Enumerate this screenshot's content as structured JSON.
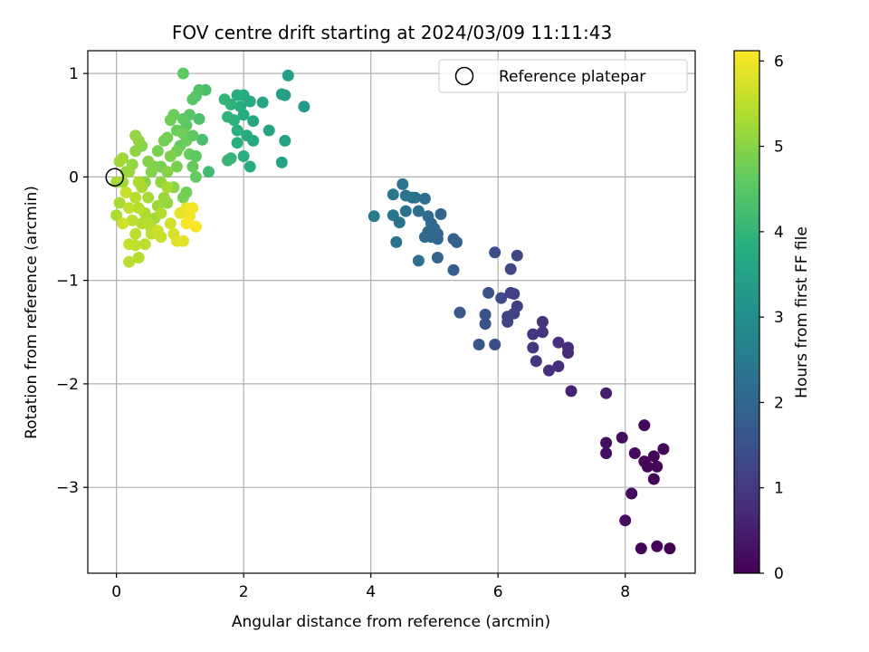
{
  "chart_data": {
    "type": "scatter",
    "title": "FOV centre drift starting at 2024/03/09 11:11:43",
    "xlabel": "Angular distance from reference (arcmin)",
    "ylabel": "Rotation from reference (arcmin)",
    "xlim": [
      -0.45,
      9.1
    ],
    "ylim": [
      -3.83,
      1.22
    ],
    "xticks": [
      0,
      2,
      4,
      6,
      8
    ],
    "yticks": [
      1,
      0,
      -1,
      -2,
      -3
    ],
    "xtick_labels": [
      "0",
      "2",
      "4",
      "6",
      "8"
    ],
    "ytick_labels": [
      "1",
      "0",
      "−1",
      "−2",
      "−3"
    ],
    "grid": true,
    "legend": {
      "placement": "top-right",
      "entries": [
        "Reference platepar"
      ]
    },
    "reference_point": {
      "x": 0,
      "y": 0,
      "label": "Reference platepar"
    },
    "colorbar": {
      "label": "Hours from first FF file",
      "range": [
        0,
        6.12
      ],
      "ticks": [
        0,
        1,
        2,
        3,
        4,
        5,
        6
      ],
      "tick_labels": [
        "0",
        "1",
        "2",
        "3",
        "4",
        "5",
        "6"
      ],
      "colormap": "viridis"
    },
    "series": [
      {
        "points": [
          [
            8.3,
            -2.4,
            0.1
          ],
          [
            8.6,
            -2.63,
            0.12
          ],
          [
            8.45,
            -2.7,
            0.08
          ],
          [
            8.3,
            -2.75,
            0.1
          ],
          [
            8.5,
            -2.8,
            0.1
          ],
          [
            8.35,
            -2.8,
            0.1
          ],
          [
            8.15,
            -2.67,
            0.15
          ],
          [
            8.45,
            -2.92,
            0.1
          ],
          [
            7.95,
            -2.52,
            0.2
          ],
          [
            7.7,
            -2.57,
            0.25
          ],
          [
            7.7,
            -2.67,
            0.25
          ],
          [
            8.1,
            -3.06,
            0.15
          ],
          [
            8.0,
            -3.32,
            0.2
          ],
          [
            8.25,
            -3.59,
            0.05
          ],
          [
            8.5,
            -3.57,
            0.05
          ],
          [
            8.7,
            -3.59,
            0.02
          ],
          [
            7.7,
            -2.09,
            0.5
          ],
          [
            7.15,
            -2.07,
            0.6
          ],
          [
            7.1,
            -1.65,
            0.75
          ],
          [
            7.1,
            -1.7,
            0.75
          ],
          [
            6.95,
            -1.6,
            0.8
          ],
          [
            6.95,
            -1.83,
            0.8
          ],
          [
            6.8,
            -1.87,
            0.85
          ],
          [
            6.7,
            -1.4,
            0.9
          ],
          [
            6.7,
            -1.5,
            0.9
          ],
          [
            6.55,
            -1.52,
            0.95
          ],
          [
            6.55,
            -1.65,
            0.95
          ],
          [
            6.6,
            -1.78,
            0.95
          ],
          [
            6.3,
            -1.25,
            1.15
          ],
          [
            6.25,
            -1.13,
            1.2
          ],
          [
            6.2,
            -1.12,
            1.2
          ],
          [
            6.25,
            -1.32,
            1.2
          ],
          [
            6.15,
            -1.4,
            1.25
          ],
          [
            6.15,
            -1.35,
            1.25
          ],
          [
            6.2,
            -0.89,
            1.3
          ],
          [
            6.3,
            -0.76,
            1.3
          ],
          [
            6.05,
            -1.17,
            1.4
          ],
          [
            5.95,
            -0.73,
            1.45
          ],
          [
            5.85,
            -1.12,
            1.5
          ],
          [
            5.8,
            -1.33,
            1.5
          ],
          [
            5.8,
            -1.42,
            1.5
          ],
          [
            5.95,
            -1.62,
            1.45
          ],
          [
            5.7,
            -1.62,
            1.55
          ],
          [
            5.4,
            -1.31,
            1.7
          ],
          [
            5.35,
            -0.63,
            1.9
          ],
          [
            5.3,
            -0.6,
            1.9
          ],
          [
            5.3,
            -0.9,
            1.85
          ],
          [
            5.05,
            -0.78,
            1.95
          ],
          [
            5.1,
            -0.36,
            2.0
          ],
          [
            5.05,
            -0.55,
            2.0
          ],
          [
            5.05,
            -0.6,
            2.0
          ],
          [
            5.0,
            -0.5,
            2.05
          ],
          [
            4.95,
            -0.45,
            2.05
          ],
          [
            4.95,
            -0.58,
            2.05
          ],
          [
            4.9,
            -0.53,
            2.1
          ],
          [
            4.85,
            -0.58,
            2.1
          ],
          [
            4.9,
            -0.38,
            2.1
          ],
          [
            4.85,
            -0.21,
            2.2
          ],
          [
            4.7,
            -0.2,
            2.3
          ],
          [
            4.65,
            -0.2,
            2.3
          ],
          [
            4.55,
            -0.18,
            2.35
          ],
          [
            4.5,
            -0.07,
            2.4
          ],
          [
            4.55,
            -0.33,
            2.3
          ],
          [
            4.75,
            -0.33,
            2.25
          ],
          [
            4.35,
            -0.17,
            2.45
          ],
          [
            4.35,
            -0.37,
            2.4
          ],
          [
            4.45,
            -0.44,
            2.35
          ],
          [
            4.4,
            -0.63,
            2.3
          ],
          [
            4.75,
            -0.81,
            2.2
          ],
          [
            4.05,
            -0.38,
            2.5
          ],
          [
            2.95,
            0.68,
            3.3
          ],
          [
            2.7,
            0.98,
            3.4
          ],
          [
            2.6,
            0.8,
            3.45
          ],
          [
            2.65,
            0.79,
            3.45
          ],
          [
            2.6,
            0.14,
            3.5
          ],
          [
            2.65,
            0.35,
            3.5
          ],
          [
            2.4,
            0.45,
            3.55
          ],
          [
            2.3,
            0.72,
            3.6
          ],
          [
            2.15,
            0.54,
            3.65
          ],
          [
            2.05,
            0.4,
            3.7
          ],
          [
            2.15,
            0.35,
            3.7
          ],
          [
            2.1,
            0.1,
            3.75
          ],
          [
            2.1,
            0.73,
            3.7
          ],
          [
            2.0,
            0.79,
            3.75
          ],
          [
            1.9,
            0.79,
            3.8
          ],
          [
            1.95,
            0.68,
            3.8
          ],
          [
            2.0,
            0.6,
            3.8
          ],
          [
            1.9,
            0.45,
            3.85
          ],
          [
            1.9,
            0.33,
            3.85
          ],
          [
            2.0,
            0.2,
            3.85
          ],
          [
            1.85,
            0.55,
            3.9
          ],
          [
            1.8,
            0.7,
            3.95
          ],
          [
            1.75,
            0.58,
            3.95
          ],
          [
            1.8,
            0.18,
            4.0
          ],
          [
            1.7,
            0.75,
            4.0
          ],
          [
            1.75,
            0.16,
            4.05
          ],
          [
            1.45,
            0.05,
            4.2
          ],
          [
            1.4,
            0.84,
            4.3
          ],
          [
            1.35,
            0.36,
            4.3
          ],
          [
            1.3,
            0.56,
            4.35
          ],
          [
            1.3,
            0.84,
            4.4
          ],
          [
            1.25,
            0.78,
            4.45
          ],
          [
            1.2,
            0.75,
            4.5
          ],
          [
            1.15,
            0.6,
            4.5
          ],
          [
            1.1,
            0.5,
            4.55
          ],
          [
            1.05,
            1.0,
            4.6
          ],
          [
            1.05,
            0.56,
            4.6
          ],
          [
            1.0,
            0.3,
            4.65
          ],
          [
            0.95,
            0.45,
            4.7
          ],
          [
            0.9,
            0.6,
            4.7
          ],
          [
            0.85,
            0.55,
            4.75
          ],
          [
            0.8,
            0.38,
            4.8
          ],
          [
            0.75,
            0.35,
            4.8
          ],
          [
            0.7,
            0.1,
            4.85
          ],
          [
            0.65,
            0.25,
            4.85
          ],
          [
            0.6,
            0.1,
            4.9
          ],
          [
            0.55,
            0.05,
            4.95
          ],
          [
            0.5,
            0.15,
            4.95
          ],
          [
            0.45,
            -0.05,
            5.0
          ],
          [
            0.4,
            0.3,
            5.0
          ],
          [
            0.35,
            0.35,
            5.05
          ],
          [
            0.3,
            0.25,
            5.05
          ],
          [
            0.3,
            0.4,
            5.1
          ],
          [
            0.25,
            0.12,
            5.1
          ],
          [
            0.2,
            0.05,
            5.15
          ],
          [
            0.15,
            0.05,
            5.2
          ],
          [
            0.1,
            0.18,
            5.2
          ],
          [
            0.1,
            -0.05,
            5.25
          ],
          [
            0.05,
            0.15,
            5.25
          ],
          [
            0.05,
            -0.25,
            5.3
          ],
          [
            0.0,
            -0.05,
            5.3
          ],
          [
            0.0,
            -0.37,
            5.35
          ],
          [
            1.2,
            0.1,
            4.65
          ],
          [
            1.15,
            0.22,
            4.7
          ],
          [
            1.1,
            0.35,
            4.7
          ],
          [
            1.05,
            0.42,
            4.75
          ],
          [
            0.95,
            0.25,
            4.8
          ],
          [
            0.95,
            0.1,
            4.85
          ],
          [
            0.85,
            0.2,
            4.9
          ],
          [
            0.8,
            0.05,
            4.95
          ],
          [
            1.2,
            0.4,
            4.6
          ],
          [
            1.25,
            0.2,
            4.6
          ],
          [
            1.25,
            0.0,
            4.65
          ],
          [
            1.1,
            -0.15,
            4.8
          ],
          [
            1.05,
            -0.2,
            4.85
          ],
          [
            0.9,
            -0.1,
            5.0
          ],
          [
            0.8,
            -0.25,
            5.1
          ],
          [
            0.75,
            -0.2,
            5.15
          ],
          [
            0.7,
            -0.05,
            5.1
          ],
          [
            0.65,
            -0.28,
            5.2
          ],
          [
            0.6,
            -0.4,
            5.25
          ],
          [
            0.55,
            -0.5,
            5.3
          ],
          [
            0.5,
            -0.2,
            5.3
          ],
          [
            0.45,
            -0.35,
            5.35
          ],
          [
            0.4,
            -0.45,
            5.4
          ],
          [
            0.35,
            -0.3,
            5.45
          ],
          [
            0.3,
            -0.2,
            5.45
          ],
          [
            0.3,
            -0.55,
            5.5
          ],
          [
            0.25,
            -0.42,
            5.5
          ],
          [
            0.2,
            -0.3,
            5.55
          ],
          [
            0.2,
            -0.65,
            5.6
          ],
          [
            0.15,
            -0.15,
            5.6
          ],
          [
            0.1,
            -0.45,
            5.65
          ],
          [
            0.2,
            -0.82,
            5.5
          ],
          [
            0.35,
            -0.78,
            5.45
          ],
          [
            0.45,
            -0.65,
            5.5
          ],
          [
            0.55,
            -0.55,
            5.55
          ],
          [
            0.7,
            -0.58,
            5.6
          ],
          [
            0.85,
            -0.45,
            5.7
          ],
          [
            0.9,
            -0.55,
            5.75
          ],
          [
            0.95,
            -0.62,
            5.8
          ],
          [
            1.05,
            -0.62,
            5.85
          ],
          [
            1.0,
            -0.35,
            5.9
          ],
          [
            1.1,
            -0.3,
            5.95
          ],
          [
            1.15,
            -0.38,
            6.0
          ],
          [
            1.2,
            -0.3,
            6.05
          ],
          [
            1.25,
            -0.48,
            6.1
          ],
          [
            1.1,
            -0.45,
            6.05
          ],
          [
            0.65,
            -0.52,
            5.65
          ],
          [
            0.3,
            -0.66,
            5.55
          ],
          [
            0.7,
            -0.35,
            5.4
          ],
          [
            0.8,
            -0.1,
            5.3
          ],
          [
            0.4,
            -0.1,
            5.3
          ],
          [
            0.5,
            -0.45,
            5.45
          ],
          [
            0.35,
            -0.05,
            5.35
          ]
        ]
      }
    ]
  }
}
